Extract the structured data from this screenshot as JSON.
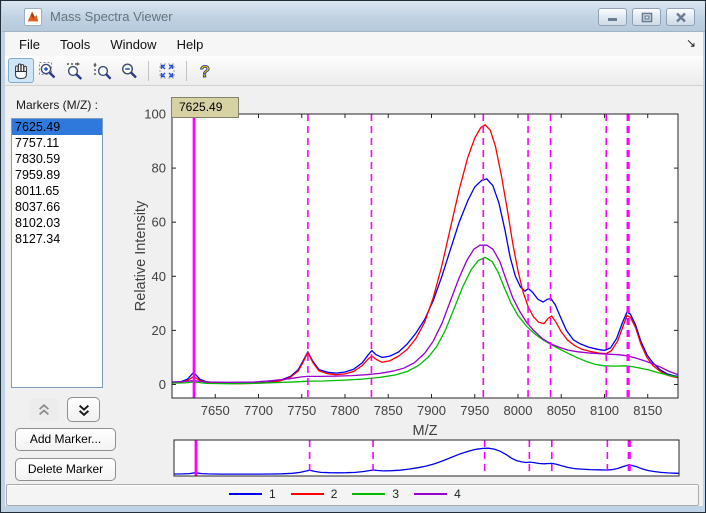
{
  "window": {
    "title": "Mass Spectra Viewer"
  },
  "menu": {
    "items": [
      "File",
      "Tools",
      "Window",
      "Help"
    ],
    "dock_glyph": "↘"
  },
  "toolbar": {
    "tools": [
      "pan",
      "zoom-in",
      "zoom-x",
      "zoom-y",
      "zoom-out",
      "fit-view",
      "help"
    ],
    "selected_tool": "pan"
  },
  "sidebar": {
    "label": "Markers (M/Z) :",
    "markers": [
      "7625.49",
      "7757.11",
      "7830.59",
      "7959.89",
      "8011.65",
      "8037.66",
      "8102.03",
      "8127.34"
    ],
    "selected_marker": "7625.49",
    "add_button": "Add Marker...",
    "delete_button": "Delete Marker"
  },
  "tooltip": {
    "text": "7625.49"
  },
  "legend": {
    "entries": [
      {
        "label": "1"
      },
      {
        "label": "2"
      },
      {
        "label": "3"
      },
      {
        "label": "4"
      }
    ]
  },
  "chart_data": {
    "type": "line",
    "title": "",
    "xlabel": "M/Z",
    "ylabel": "Relative Intensity",
    "xlim": [
      7600,
      8185
    ],
    "ylim": [
      -5,
      100
    ],
    "xticks": [
      7650,
      7700,
      7750,
      7800,
      7850,
      7900,
      7950,
      8000,
      8050,
      8100,
      8150
    ],
    "yticks": [
      0,
      20,
      40,
      60,
      80,
      100
    ],
    "grid": false,
    "legend_position": "below",
    "marker_color": "#ff00ff",
    "markers": [
      {
        "mz": 7625.49,
        "style": "solid",
        "emphasis": false
      },
      {
        "mz": 7757.11,
        "style": "dashed",
        "emphasis": false
      },
      {
        "mz": 7830.59,
        "style": "dashed",
        "emphasis": false
      },
      {
        "mz": 7959.89,
        "style": "dashed",
        "emphasis": false
      },
      {
        "mz": 8011.65,
        "style": "dashed",
        "emphasis": false
      },
      {
        "mz": 8037.66,
        "style": "dashed",
        "emphasis": false
      },
      {
        "mz": 8102.03,
        "style": "dashed",
        "emphasis": false
      },
      {
        "mz": 8127.34,
        "style": "dashed",
        "emphasis": true
      }
    ],
    "series": [
      {
        "name": "1",
        "color": "#0000ee",
        "points": [
          [
            7600,
            0.8
          ],
          [
            7610,
            1
          ],
          [
            7618,
            2
          ],
          [
            7625,
            4.5
          ],
          [
            7632,
            2
          ],
          [
            7640,
            1
          ],
          [
            7655,
            0.6
          ],
          [
            7675,
            0.4
          ],
          [
            7695,
            0.5
          ],
          [
            7712,
            0.8
          ],
          [
            7725,
            1.5
          ],
          [
            7737,
            3
          ],
          [
            7746,
            5.5
          ],
          [
            7752,
            9
          ],
          [
            7757,
            12
          ],
          [
            7763,
            8.5
          ],
          [
            7770,
            5.5
          ],
          [
            7780,
            4.5
          ],
          [
            7790,
            4.2
          ],
          [
            7800,
            4.6
          ],
          [
            7810,
            5.6
          ],
          [
            7820,
            8
          ],
          [
            7827,
            11
          ],
          [
            7831,
            12.5
          ],
          [
            7836,
            11
          ],
          [
            7843,
            10
          ],
          [
            7852,
            10.5
          ],
          [
            7862,
            12
          ],
          [
            7872,
            15
          ],
          [
            7882,
            19
          ],
          [
            7892,
            24
          ],
          [
            7902,
            31
          ],
          [
            7912,
            40
          ],
          [
            7922,
            50
          ],
          [
            7932,
            60
          ],
          [
            7942,
            68
          ],
          [
            7950,
            73
          ],
          [
            7958,
            75.5
          ],
          [
            7964,
            76
          ],
          [
            7971,
            73.5
          ],
          [
            7978,
            67
          ],
          [
            7985,
            57
          ],
          [
            7991,
            47
          ],
          [
            7997,
            40
          ],
          [
            8003,
            36
          ],
          [
            8008,
            34.5
          ],
          [
            8012,
            35.5
          ],
          [
            8017,
            34
          ],
          [
            8023,
            31.5
          ],
          [
            8029,
            30.5
          ],
          [
            8034,
            31.5
          ],
          [
            8038,
            31.8
          ],
          [
            8043,
            29.5
          ],
          [
            8049,
            25
          ],
          [
            8056,
            20
          ],
          [
            8064,
            16.5
          ],
          [
            8072,
            15
          ],
          [
            8082,
            13.8
          ],
          [
            8092,
            13
          ],
          [
            8100,
            12.6
          ],
          [
            8107,
            13.5
          ],
          [
            8114,
            17
          ],
          [
            8121,
            23
          ],
          [
            8126,
            26.8
          ],
          [
            8130,
            26
          ],
          [
            8136,
            22
          ],
          [
            8142,
            16
          ],
          [
            8149,
            11
          ],
          [
            8156,
            8
          ],
          [
            8164,
            5.5
          ],
          [
            8172,
            4
          ],
          [
            8180,
            3.2
          ],
          [
            8185,
            3
          ]
        ]
      },
      {
        "name": "2",
        "color": "#ff0000",
        "points": [
          [
            7600,
            0.6
          ],
          [
            7610,
            0.8
          ],
          [
            7618,
            1.5
          ],
          [
            7625,
            3
          ],
          [
            7632,
            1.5
          ],
          [
            7640,
            0.8
          ],
          [
            7655,
            0.5
          ],
          [
            7675,
            0.3
          ],
          [
            7695,
            0.4
          ],
          [
            7712,
            0.7
          ],
          [
            7725,
            1.3
          ],
          [
            7737,
            2.7
          ],
          [
            7746,
            5
          ],
          [
            7752,
            8.5
          ],
          [
            7757,
            11.8
          ],
          [
            7763,
            8
          ],
          [
            7770,
            5
          ],
          [
            7780,
            4
          ],
          [
            7790,
            3.6
          ],
          [
            7800,
            3.9
          ],
          [
            7810,
            4.8
          ],
          [
            7820,
            7
          ],
          [
            7827,
            9.5
          ],
          [
            7831,
            10.5
          ],
          [
            7836,
            9.3
          ],
          [
            7843,
            8.2
          ],
          [
            7852,
            8.8
          ],
          [
            7862,
            10.5
          ],
          [
            7872,
            13
          ],
          [
            7882,
            17
          ],
          [
            7892,
            23
          ],
          [
            7902,
            32
          ],
          [
            7912,
            44
          ],
          [
            7922,
            58
          ],
          [
            7932,
            72
          ],
          [
            7942,
            84
          ],
          [
            7950,
            91
          ],
          [
            7957,
            95
          ],
          [
            7962,
            96
          ],
          [
            7968,
            94
          ],
          [
            7974,
            88
          ],
          [
            7981,
            77
          ],
          [
            7988,
            64
          ],
          [
            7994,
            52
          ],
          [
            8000,
            42
          ],
          [
            8006,
            34
          ],
          [
            8012,
            28.5
          ],
          [
            8018,
            25
          ],
          [
            8024,
            23
          ],
          [
            8030,
            22.5
          ],
          [
            8035,
            24.5
          ],
          [
            8039,
            25.3
          ],
          [
            8044,
            23
          ],
          [
            8050,
            19.5
          ],
          [
            8057,
            16.5
          ],
          [
            8065,
            14.5
          ],
          [
            8074,
            13
          ],
          [
            8084,
            12.2
          ],
          [
            8094,
            11.6
          ],
          [
            8102,
            11.4
          ],
          [
            8108,
            12.5
          ],
          [
            8115,
            16
          ],
          [
            8122,
            22
          ],
          [
            8126,
            25.5
          ],
          [
            8130,
            24.8
          ],
          [
            8136,
            21
          ],
          [
            8142,
            15
          ],
          [
            8149,
            10
          ],
          [
            8156,
            7
          ],
          [
            8164,
            5
          ],
          [
            8172,
            3.5
          ],
          [
            8180,
            2.8
          ],
          [
            8185,
            2.5
          ]
        ]
      },
      {
        "name": "3",
        "color": "#00bb00",
        "points": [
          [
            7600,
            0.5
          ],
          [
            7615,
            0.6
          ],
          [
            7625,
            0.9
          ],
          [
            7640,
            0.4
          ],
          [
            7665,
            0.3
          ],
          [
            7695,
            0.4
          ],
          [
            7720,
            0.7
          ],
          [
            7745,
            1
          ],
          [
            7757,
            1.2
          ],
          [
            7775,
            1.3
          ],
          [
            7800,
            1.6
          ],
          [
            7820,
            2
          ],
          [
            7840,
            2.6
          ],
          [
            7858,
            3.5
          ],
          [
            7872,
            4.8
          ],
          [
            7885,
            7
          ],
          [
            7896,
            10
          ],
          [
            7906,
            14
          ],
          [
            7916,
            20
          ],
          [
            7926,
            28
          ],
          [
            7936,
            36
          ],
          [
            7946,
            42.5
          ],
          [
            7954,
            45.8
          ],
          [
            7962,
            47
          ],
          [
            7970,
            45.5
          ],
          [
            7977,
            41.5
          ],
          [
            7984,
            36
          ],
          [
            7992,
            30
          ],
          [
            8000,
            25.5
          ],
          [
            8010,
            21.5
          ],
          [
            8020,
            18.5
          ],
          [
            8030,
            16.3
          ],
          [
            8040,
            14.5
          ],
          [
            8050,
            12.8
          ],
          [
            8060,
            11.2
          ],
          [
            8070,
            9.7
          ],
          [
            8080,
            8.4
          ],
          [
            8090,
            7.4
          ],
          [
            8100,
            6.9
          ],
          [
            8112,
            6.8
          ],
          [
            8124,
            6.9
          ],
          [
            8132,
            6.6
          ],
          [
            8142,
            6
          ],
          [
            8152,
            5.3
          ],
          [
            8162,
            4.4
          ],
          [
            8172,
            3.6
          ],
          [
            8180,
            3
          ],
          [
            8185,
            2.8
          ]
        ]
      },
      {
        "name": "4",
        "color": "#9900cc",
        "points": [
          [
            7600,
            0.9
          ],
          [
            7615,
            1.1
          ],
          [
            7625,
            1.4
          ],
          [
            7640,
            0.9
          ],
          [
            7665,
            0.8
          ],
          [
            7695,
            0.9
          ],
          [
            7715,
            1.4
          ],
          [
            7735,
            2.1
          ],
          [
            7750,
            2.8
          ],
          [
            7757,
            3
          ],
          [
            7772,
            3
          ],
          [
            7790,
            3.1
          ],
          [
            7808,
            3.3
          ],
          [
            7825,
            3.6
          ],
          [
            7840,
            4.1
          ],
          [
            7855,
            4.9
          ],
          [
            7868,
            6
          ],
          [
            7880,
            8
          ],
          [
            7892,
            11.5
          ],
          [
            7902,
            16
          ],
          [
            7912,
            22.5
          ],
          [
            7922,
            31
          ],
          [
            7932,
            39.5
          ],
          [
            7941,
            46
          ],
          [
            7949,
            50
          ],
          [
            7956,
            51.5
          ],
          [
            7964,
            51.5
          ],
          [
            7971,
            50
          ],
          [
            7979,
            45.5
          ],
          [
            7986,
            39
          ],
          [
            7994,
            32
          ],
          [
            8002,
            27
          ],
          [
            8010,
            23
          ],
          [
            8018,
            20
          ],
          [
            8028,
            17
          ],
          [
            8038,
            15
          ],
          [
            8048,
            13.7
          ],
          [
            8058,
            12.7
          ],
          [
            8068,
            12.1
          ],
          [
            8080,
            11.7
          ],
          [
            8092,
            11.4
          ],
          [
            8104,
            11.2
          ],
          [
            8116,
            11
          ],
          [
            8126,
            10.6
          ],
          [
            8136,
            9.8
          ],
          [
            8146,
            8.8
          ],
          [
            8156,
            7.6
          ],
          [
            8166,
            6.2
          ],
          [
            8175,
            4.8
          ],
          [
            8185,
            3.6
          ]
        ]
      }
    ],
    "overview": {
      "series_names": [
        "1"
      ],
      "ylim": [
        -5,
        100
      ]
    }
  }
}
